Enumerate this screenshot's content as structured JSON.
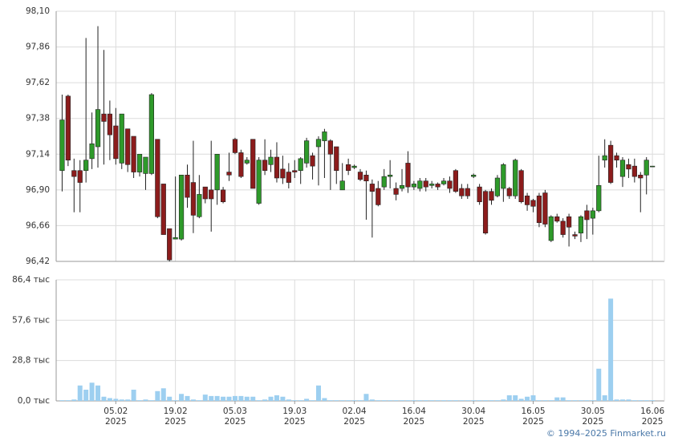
{
  "chart_data": [
    {
      "type": "candlestick",
      "ylim": [
        96.42,
        98.1
      ],
      "yticks": [
        {
          "value": 98.1,
          "label": "98,10"
        },
        {
          "value": 97.86,
          "label": "97,86"
        },
        {
          "value": 97.62,
          "label": "97,62"
        },
        {
          "value": 97.38,
          "label": "97,38"
        },
        {
          "value": 97.14,
          "label": "97,14"
        },
        {
          "value": 96.9,
          "label": "96,90"
        },
        {
          "value": 96.66,
          "label": "96,66"
        },
        {
          "value": 96.42,
          "label": "96,42"
        }
      ],
      "grid": true,
      "up_color": "#2e9a2a",
      "down_color": "#8c1c1c",
      "open": [
        97.03,
        97.53,
        97.03,
        97.03,
        97.03,
        97.11,
        97.19,
        97.41,
        97.41,
        97.33,
        97.08,
        97.31,
        97.26,
        97.02,
        97.01,
        97.01,
        97.24,
        96.94,
        96.64,
        96.57,
        96.57,
        97.0,
        96.95,
        96.72,
        96.92,
        96.9,
        96.9,
        96.9,
        97.02,
        97.24,
        97.15,
        97.08,
        97.24,
        96.81,
        97.1,
        97.07,
        97.12,
        97.04,
        97.02,
        97.03,
        97.03,
        97.08,
        97.13,
        97.19,
        97.23,
        97.23,
        97.19,
        96.9,
        97.07,
        97.05,
        97.02,
        97.0,
        96.94,
        96.91,
        96.92,
        96.99,
        96.91,
        96.91,
        97.08,
        96.92,
        96.91,
        96.96,
        96.93,
        96.94,
        96.94,
        96.96,
        97.03,
        96.91,
        96.91,
        96.99,
        96.92,
        96.89,
        96.89,
        96.86,
        96.91,
        96.91,
        96.86,
        97.03,
        96.86,
        96.83,
        96.86,
        96.88,
        96.56,
        96.72,
        96.69,
        96.72,
        96.6,
        96.61,
        96.76,
        96.71,
        96.76,
        97.1,
        97.2,
        97.13,
        96.99,
        97.07,
        97.06,
        97.0,
        97.0,
        97.06
      ],
      "high": [
        97.54,
        97.54,
        97.11,
        97.1,
        97.92,
        97.42,
        98.0,
        97.84,
        97.5,
        97.45,
        97.41,
        97.31,
        97.26,
        97.14,
        97.12,
        97.55,
        97.24,
        96.94,
        96.64,
        96.99,
        97.0,
        97.07,
        97.23,
        97.0,
        96.92,
        97.23,
        97.14,
        96.92,
        97.15,
        97.25,
        97.17,
        97.12,
        97.24,
        97.12,
        97.24,
        97.17,
        97.22,
        97.13,
        97.08,
        97.1,
        97.12,
        97.25,
        97.15,
        97.26,
        97.31,
        97.24,
        97.19,
        97.08,
        97.11,
        97.07,
        97.04,
        97.03,
        96.97,
        96.96,
        97.04,
        97.1,
        96.95,
        97.04,
        97.16,
        96.96,
        96.98,
        96.98,
        96.96,
        96.95,
        96.98,
        96.99,
        97.04,
        96.94,
        96.94,
        97.01,
        96.94,
        96.9,
        96.91,
        97.0,
        97.08,
        96.92,
        97.11,
        97.04,
        96.88,
        96.84,
        96.88,
        96.9,
        96.73,
        96.74,
        96.71,
        96.74,
        96.62,
        96.73,
        96.8,
        96.78,
        97.13,
        97.24,
        97.23,
        97.15,
        97.12,
        97.11,
        97.11,
        97.02,
        97.12,
        97.06
      ],
      "low": [
        96.89,
        97.06,
        96.75,
        96.75,
        96.95,
        97.04,
        97.05,
        97.07,
        97.1,
        97.07,
        97.04,
        97.02,
        96.98,
        96.99,
        96.9,
        97.0,
        96.71,
        96.6,
        96.42,
        96.57,
        96.56,
        96.78,
        96.61,
        96.71,
        96.81,
        96.62,
        96.8,
        96.81,
        96.96,
        97.14,
        96.98,
        97.07,
        96.91,
        96.8,
        97.0,
        97.02,
        96.95,
        96.94,
        96.91,
        96.98,
        96.94,
        97.05,
        96.97,
        96.93,
        96.98,
        96.9,
        96.94,
        96.9,
        97.0,
        97.04,
        96.96,
        96.7,
        96.58,
        96.79,
        96.9,
        96.91,
        96.83,
        96.89,
        96.88,
        96.9,
        96.89,
        96.89,
        96.91,
        96.9,
        96.93,
        96.88,
        96.88,
        96.84,
        96.84,
        96.98,
        96.8,
        96.6,
        96.8,
        96.85,
        96.82,
        96.84,
        96.84,
        96.81,
        96.76,
        96.75,
        96.65,
        96.65,
        96.55,
        96.68,
        96.58,
        96.52,
        96.57,
        96.55,
        96.57,
        96.6,
        96.75,
        97.05,
        96.94,
        97.05,
        96.92,
        96.98,
        96.95,
        96.75,
        96.87,
        97.06
      ],
      "close": [
        97.37,
        97.1,
        96.99,
        96.95,
        97.1,
        97.21,
        97.44,
        97.36,
        97.27,
        97.11,
        97.41,
        97.07,
        97.02,
        97.14,
        97.12,
        97.54,
        96.72,
        96.6,
        96.43,
        96.58,
        97.0,
        96.85,
        96.73,
        96.87,
        96.84,
        96.84,
        97.14,
        96.82,
        97.0,
        97.15,
        96.99,
        97.1,
        96.91,
        97.1,
        97.03,
        97.12,
        96.98,
        96.98,
        96.95,
        97.02,
        97.11,
        97.23,
        97.06,
        97.24,
        97.29,
        97.14,
        97.03,
        96.96,
        97.03,
        97.06,
        96.97,
        96.96,
        96.89,
        96.8,
        96.99,
        97.0,
        96.87,
        96.93,
        96.92,
        96.94,
        96.96,
        96.92,
        96.94,
        96.92,
        96.96,
        96.91,
        96.89,
        96.86,
        96.86,
        97.0,
        96.82,
        96.61,
        96.83,
        96.98,
        97.07,
        96.86,
        97.1,
        96.82,
        96.8,
        96.79,
        96.68,
        96.67,
        96.72,
        96.69,
        96.6,
        96.65,
        96.59,
        96.72,
        96.7,
        96.76,
        96.93,
        97.13,
        96.95,
        97.1,
        97.1,
        97.04,
        96.99,
        96.98,
        97.1,
        97.06
      ]
    },
    {
      "type": "bar",
      "ylim": [
        0,
        86.4
      ],
      "yticks": [
        {
          "value": 86.4,
          "label": "86,4 тыс"
        },
        {
          "value": 57.6,
          "label": "57,6 тыс"
        },
        {
          "value": 28.8,
          "label": "28,8 тыс"
        },
        {
          "value": 0,
          "label": "0,0 тыс"
        }
      ],
      "grid": true,
      "color": "#9dcff0",
      "categories": [
        null,
        null,
        null,
        null,
        null,
        null,
        null,
        null,
        null,
        "05.02 2025",
        null,
        null,
        null,
        null,
        null,
        null,
        null,
        null,
        null,
        "19.02 2025",
        null,
        null,
        null,
        null,
        null,
        null,
        null,
        null,
        null,
        "05.03 2025",
        null,
        null,
        null,
        null,
        null,
        null,
        null,
        null,
        null,
        "19.03 2025",
        null,
        null,
        null,
        null,
        null,
        null,
        null,
        null,
        null,
        "02.04 2025",
        null,
        null,
        null,
        null,
        null,
        null,
        null,
        null,
        null,
        "16.04 2025",
        null,
        null,
        null,
        null,
        null,
        null,
        null,
        null,
        null,
        "30.04 2025",
        null,
        null,
        null,
        null,
        null,
        null,
        null,
        null,
        null,
        "16.05 2025",
        null,
        null,
        null,
        null,
        null,
        null,
        null,
        null,
        null,
        "30.05 2025",
        null,
        null,
        null,
        null,
        null,
        null,
        null,
        null,
        null,
        "16.06 2025"
      ],
      "values": [
        0.5,
        0.5,
        1,
        11,
        8,
        13,
        11,
        3,
        2,
        1.5,
        1,
        1,
        8,
        0.5,
        1,
        0.5,
        7,
        9,
        3,
        0.5,
        5,
        3.5,
        1,
        0.5,
        4.5,
        3.5,
        3.5,
        3,
        3,
        3.5,
        3.5,
        3,
        3,
        0.5,
        1,
        3,
        4,
        3,
        1,
        0.5,
        0.5,
        1.5,
        0.5,
        11,
        2,
        0.5,
        0.5,
        0.5,
        0.5,
        0.5,
        0.5,
        5,
        1,
        0.5,
        0.5,
        0.5,
        0.5,
        0.5,
        0.5,
        0.5,
        0.5,
        0.5,
        0.5,
        0.5,
        0.5,
        0.5,
        0.5,
        0.5,
        0.5,
        0.5,
        0.5,
        0.5,
        0.5,
        0.5,
        1,
        4,
        4,
        1.5,
        3,
        4,
        0.5,
        0.5,
        0.5,
        2.5,
        2.5,
        0.5,
        0.5,
        0.5,
        0.5,
        0.5,
        23,
        4,
        73,
        1,
        1,
        1,
        0.5,
        0.5,
        0.5,
        0.5
      ]
    }
  ],
  "footer": "© 1994–2025 Finmarket.ru"
}
